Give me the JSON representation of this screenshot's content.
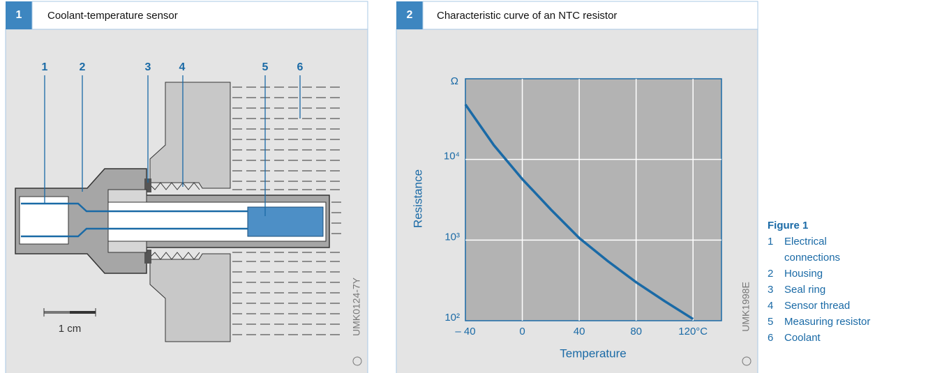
{
  "panels": [
    {
      "number": "1",
      "title": "Coolant-temperature sensor",
      "callouts": [
        "1",
        "2",
        "3",
        "4",
        "5",
        "6"
      ],
      "scale_label": "1 cm",
      "code": "UMK0124-7Y"
    },
    {
      "number": "2",
      "title": "Characteristic curve of an NTC resistor",
      "code": "UMK1998E"
    }
  ],
  "chart_data": {
    "type": "line",
    "x_label": "Temperature",
    "y_label": "Resistance",
    "y_unit": "Ω",
    "x": [
      -40,
      -20,
      0,
      20,
      40,
      60,
      80,
      100,
      120
    ],
    "series": [
      {
        "color": "#1a6aa6",
        "values": [
          48000,
          15000,
          5700,
          2400,
          1060,
          550,
          300,
          175,
          105
        ]
      }
    ],
    "xlim": [
      -40,
      140
    ],
    "ylim": [
      100,
      100000
    ],
    "log_y": true,
    "grid": true,
    "xticks": [
      {
        "value": -40,
        "label": "– 40"
      },
      0,
      40,
      80,
      {
        "value": 120,
        "label": "120°C"
      }
    ],
    "yticks": [
      {
        "value": 100,
        "label": "10²"
      },
      {
        "value": 1000,
        "label": "10³"
      },
      {
        "value": 10000,
        "label": "10⁴"
      }
    ]
  },
  "legend": {
    "title": "Figure 1",
    "items": [
      {
        "number": "1",
        "text": "Electrical connections"
      },
      {
        "number": "2",
        "text": "Housing"
      },
      {
        "number": "3",
        "text": "Seal ring"
      },
      {
        "number": "4",
        "text": "Sensor thread"
      },
      {
        "number": "5",
        "text": "Measuring resistor"
      },
      {
        "number": "6",
        "text": "Coolant"
      }
    ]
  }
}
